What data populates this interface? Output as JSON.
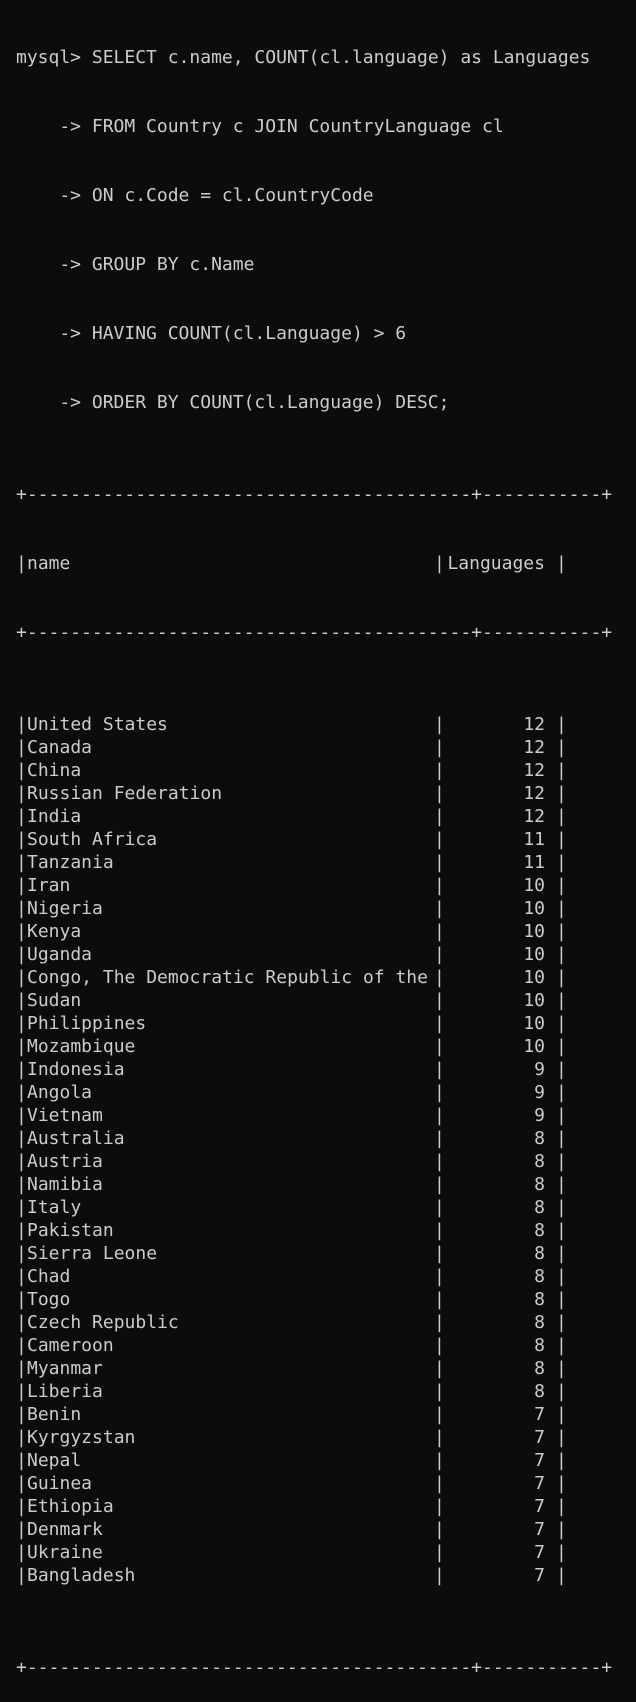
{
  "prompt": "mysql>",
  "query_lines": [
    " SELECT c.name, COUNT(cl.language) as Languages",
    "    -> FROM Country c JOIN CountryLanguage cl",
    "    -> ON c.Code = cl.CountryCode",
    "    -> GROUP BY c.Name",
    "    -> HAVING COUNT(cl.Language) > 6",
    "    -> ORDER BY COUNT(cl.Language) DESC;"
  ],
  "border_line": "+-----------------------------------------+-----------+",
  "columns": [
    "name",
    "Languages"
  ],
  "rows": [
    [
      "United States",
      "12"
    ],
    [
      "Canada",
      "12"
    ],
    [
      "China",
      "12"
    ],
    [
      "Russian Federation",
      "12"
    ],
    [
      "India",
      "12"
    ],
    [
      "South Africa",
      "11"
    ],
    [
      "Tanzania",
      "11"
    ],
    [
      "Iran",
      "10"
    ],
    [
      "Nigeria",
      "10"
    ],
    [
      "Kenya",
      "10"
    ],
    [
      "Uganda",
      "10"
    ],
    [
      "Congo, The Democratic Republic of the",
      "10"
    ],
    [
      "Sudan",
      "10"
    ],
    [
      "Philippines",
      "10"
    ],
    [
      "Mozambique",
      "10"
    ],
    [
      "Indonesia",
      "9"
    ],
    [
      "Angola",
      "9"
    ],
    [
      "Vietnam",
      "9"
    ],
    [
      "Australia",
      "8"
    ],
    [
      "Austria",
      "8"
    ],
    [
      "Namibia",
      "8"
    ],
    [
      "Italy",
      "8"
    ],
    [
      "Pakistan",
      "8"
    ],
    [
      "Sierra Leone",
      "8"
    ],
    [
      "Chad",
      "8"
    ],
    [
      "Togo",
      "8"
    ],
    [
      "Czech Republic",
      "8"
    ],
    [
      "Cameroon",
      "8"
    ],
    [
      "Myanmar",
      "8"
    ],
    [
      "Liberia",
      "8"
    ],
    [
      "Benin",
      "7"
    ],
    [
      "Kyrgyzstan",
      "7"
    ],
    [
      "Nepal",
      "7"
    ],
    [
      "Guinea",
      "7"
    ],
    [
      "Ethiopia",
      "7"
    ],
    [
      "Denmark",
      "7"
    ],
    [
      "Ukraine",
      "7"
    ],
    [
      "Bangladesh",
      "7"
    ]
  ],
  "colors": {
    "background": "#0c0c0c",
    "foreground": "#cccccc"
  }
}
